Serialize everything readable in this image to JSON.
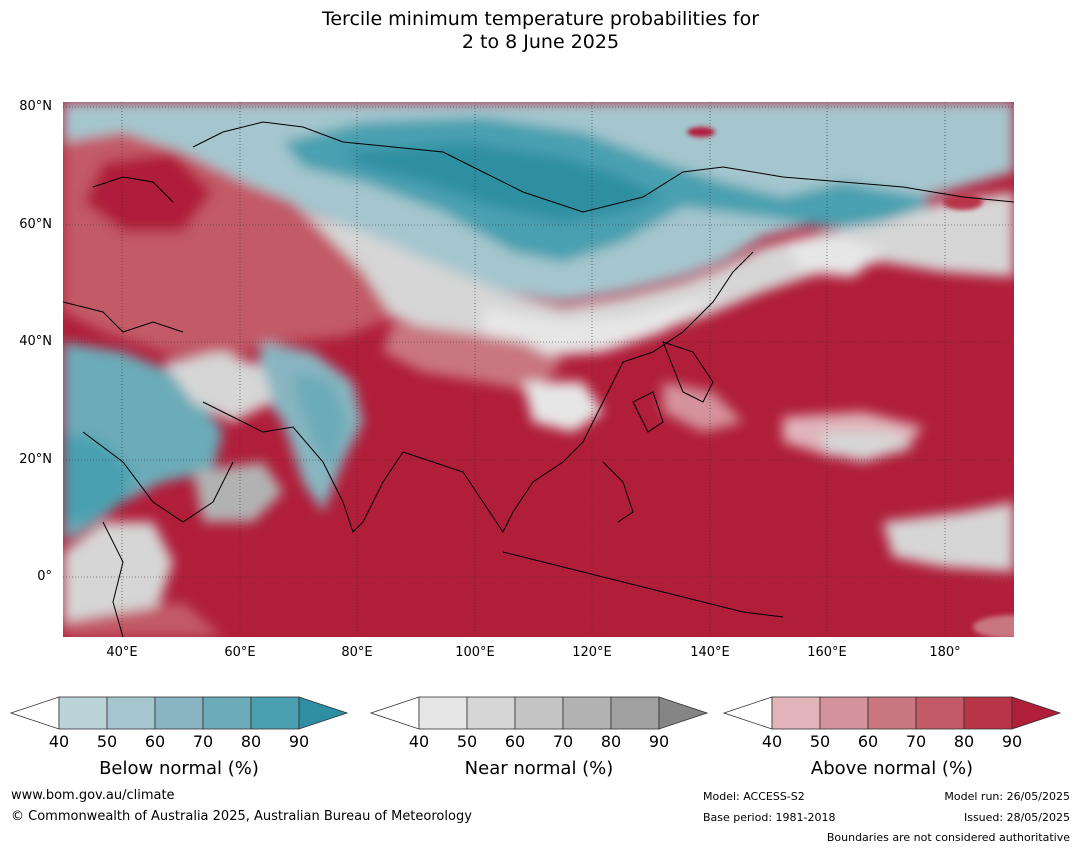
{
  "title_line1": "Tercile minimum temperature probabilities for",
  "title_line2": "2 to 8 June 2025",
  "lat_labels": [
    "80°N",
    "60°N",
    "40°N",
    "20°N",
    "0°"
  ],
  "lon_labels": [
    "40°E",
    "60°E",
    "80°E",
    "100°E",
    "120°E",
    "140°E",
    "160°E",
    "180°"
  ],
  "colorbars": [
    {
      "label": "Below normal (%)",
      "ticks": [
        "40",
        "50",
        "60",
        "70",
        "80",
        "90"
      ],
      "colors": [
        "#ffffff",
        "#bdd3da",
        "#a5c6ce",
        "#88b5c1",
        "#6cabb8",
        "#4aa0b0",
        "#2d8fa1"
      ]
    },
    {
      "label": "Near normal (%)",
      "ticks": [
        "40",
        "50",
        "60",
        "70",
        "80",
        "90"
      ],
      "colors": [
        "#ffffff",
        "#e6e6e6",
        "#d6d6d6",
        "#c4c4c4",
        "#b2b2b2",
        "#a0a0a0",
        "#858585"
      ]
    },
    {
      "label": "Above normal (%)",
      "ticks": [
        "40",
        "50",
        "60",
        "70",
        "80",
        "90"
      ],
      "colors": [
        "#ffffff",
        "#e0b4b9",
        "#d4939c",
        "#c97680",
        "#c25a68",
        "#b83548",
        "#b01e3a"
      ]
    }
  ],
  "footer": {
    "url": "www.bom.gov.au/climate",
    "copyright": "© Commonwealth of Australia 2025, Australian Bureau of Meteorology",
    "model": "Model: ACCESS-S2",
    "base_period": "Base period: 1981-2018",
    "model_run": "Model run: 26/05/2025",
    "issued": "Issued: 28/05/2025",
    "boundaries": "Boundaries are not considered authoritative"
  }
}
